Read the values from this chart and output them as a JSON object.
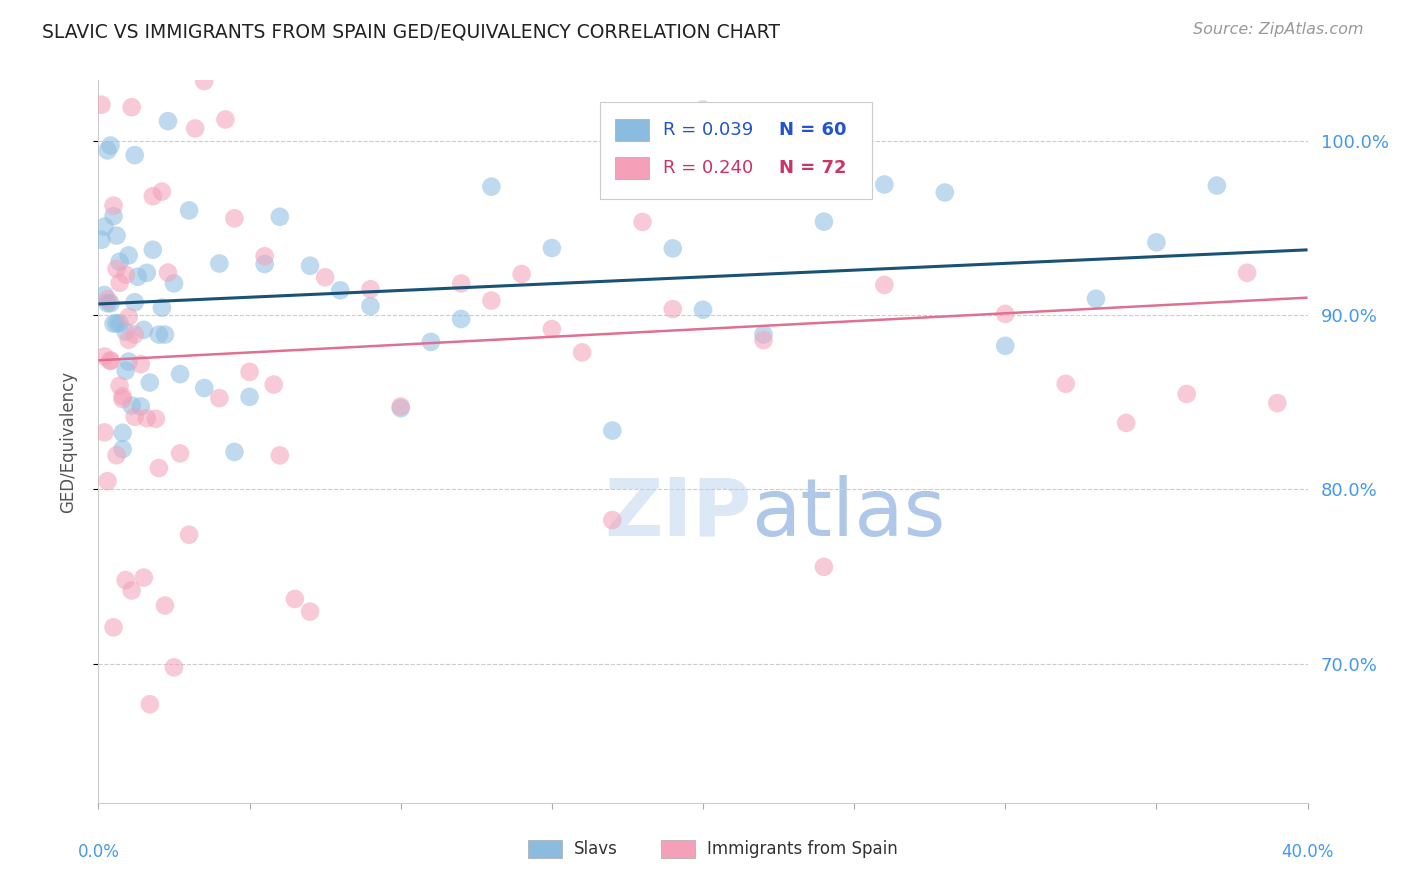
{
  "title": "SLAVIC VS IMMIGRANTS FROM SPAIN GED/EQUIVALENCY CORRELATION CHART",
  "source": "Source: ZipAtlas.com",
  "ylabel": "GED/Equivalency",
  "yticks": [
    70.0,
    80.0,
    90.0,
    100.0
  ],
  "ytick_labels": [
    "70.0%",
    "80.0%",
    "90.0%",
    "100.0%"
  ],
  "xmin": 0.0,
  "xmax": 40.0,
  "ymin": 62.0,
  "ymax": 103.5,
  "slavs_R": 0.039,
  "slavs_N": 60,
  "spain_R": 0.24,
  "spain_N": 72,
  "slavs_color": "#8bbce0",
  "spain_color": "#f4a0b8",
  "slavs_line_color": "#1a5276",
  "spain_line_color": "#e07090",
  "background_color": "#ffffff",
  "grid_color": "#cccccc",
  "watermark_light": "#dce8f5",
  "watermark_dark": "#b0c8e8",
  "right_axis_color": "#4499ee",
  "title_color": "#222222",
  "source_color": "#999999",
  "legend_text_color_blue": "#2255cc",
  "legend_text_color_pink": "#cc3366"
}
